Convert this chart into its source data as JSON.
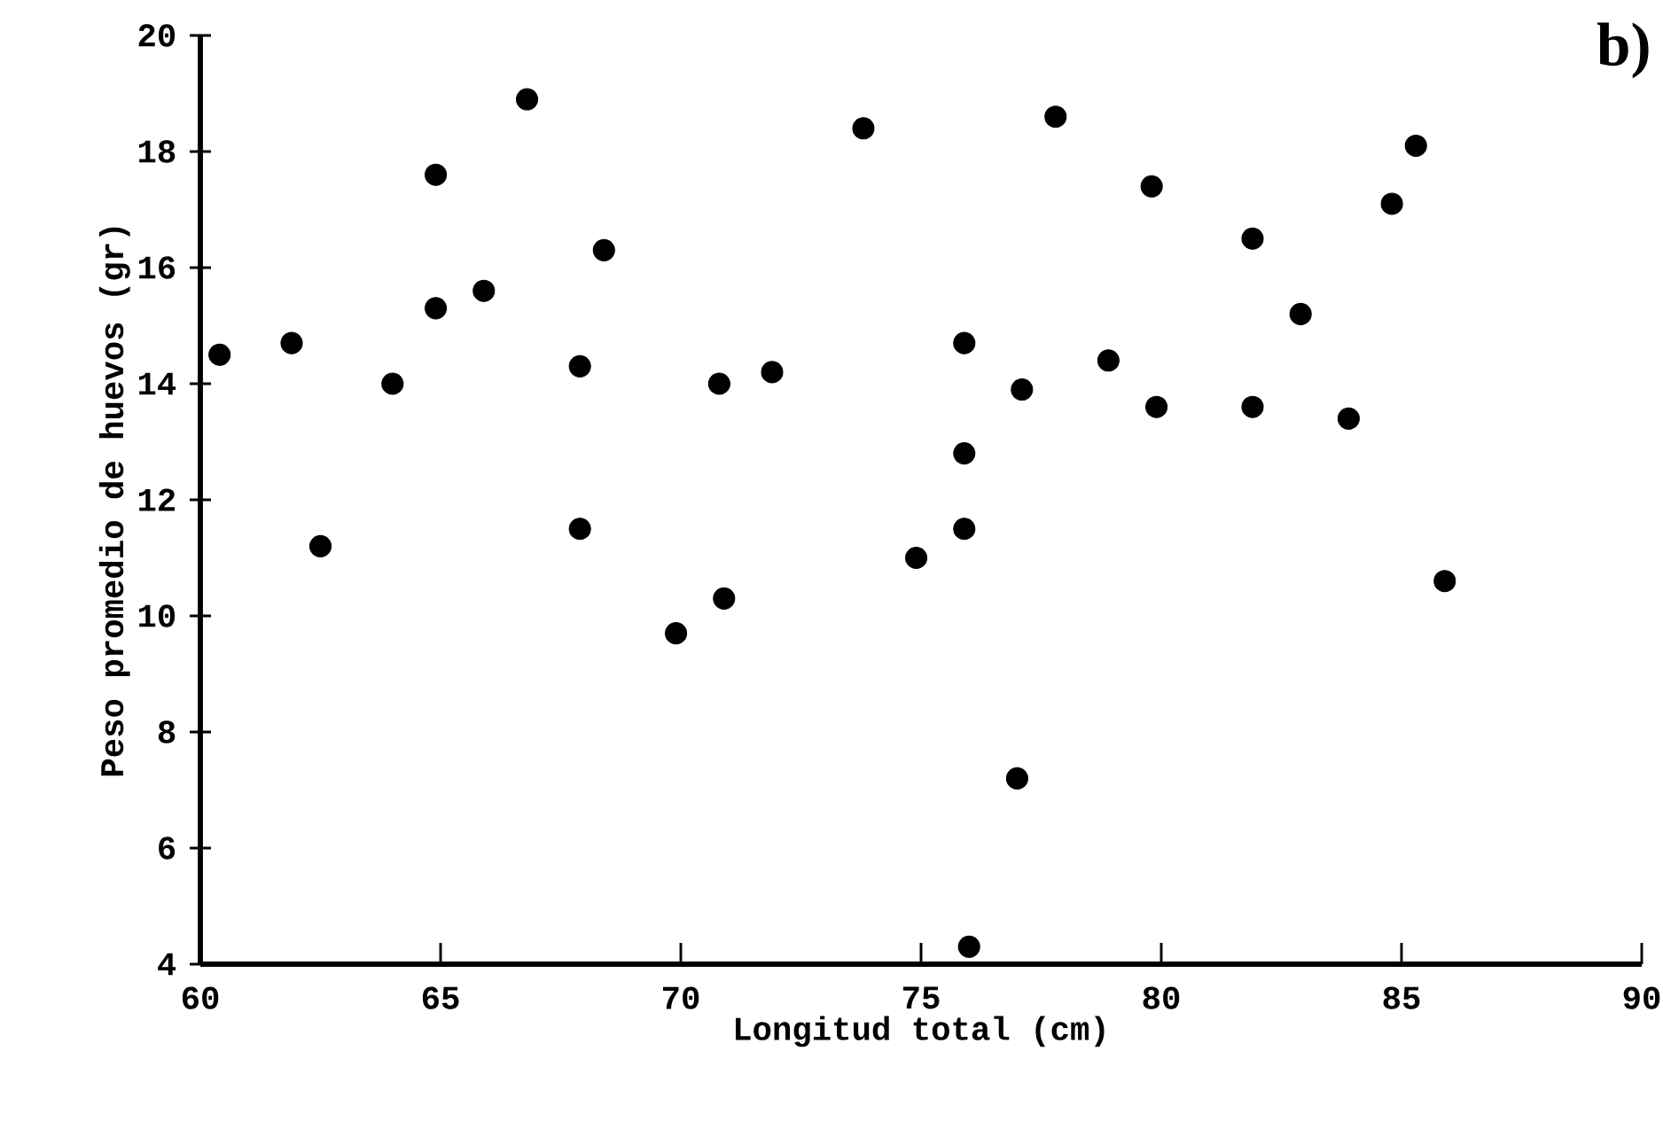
{
  "chart_data": {
    "type": "scatter",
    "xlabel": "Longitud total (cm)",
    "ylabel": "Peso promedio de huevos (gr)",
    "annotations": [
      "b)"
    ],
    "x": [
      60.4,
      61.9,
      64.0,
      62.5,
      64.9,
      64.9,
      65.9,
      66.8,
      68.4,
      67.9,
      67.9,
      70.8,
      71.9,
      73.8,
      69.9,
      70.9,
      77.8,
      79.8,
      85.3,
      84.8,
      81.9,
      82.9,
      75.9,
      78.9,
      77.1,
      79.9,
      81.9,
      83.9,
      75.9,
      75.9,
      74.9,
      85.9,
      77.0,
      76.0
    ],
    "values": [
      14.5,
      14.7,
      14.0,
      11.2,
      17.6,
      15.3,
      15.6,
      18.9,
      16.3,
      14.3,
      11.5,
      14.0,
      14.2,
      18.4,
      9.7,
      10.3,
      18.6,
      17.4,
      18.1,
      17.1,
      16.5,
      15.2,
      14.7,
      14.4,
      13.9,
      13.6,
      13.6,
      13.4,
      12.8,
      11.5,
      11.0,
      10.6,
      7.2,
      4.3
    ],
    "color": "#000000",
    "marker": "circle",
    "xlim": [
      60,
      90
    ],
    "ylim": [
      4,
      20
    ],
    "xticks": [
      60,
      65,
      70,
      75,
      80,
      85,
      90
    ],
    "yticks": [
      4,
      6,
      8,
      10,
      12,
      14,
      16,
      18,
      20
    ]
  }
}
